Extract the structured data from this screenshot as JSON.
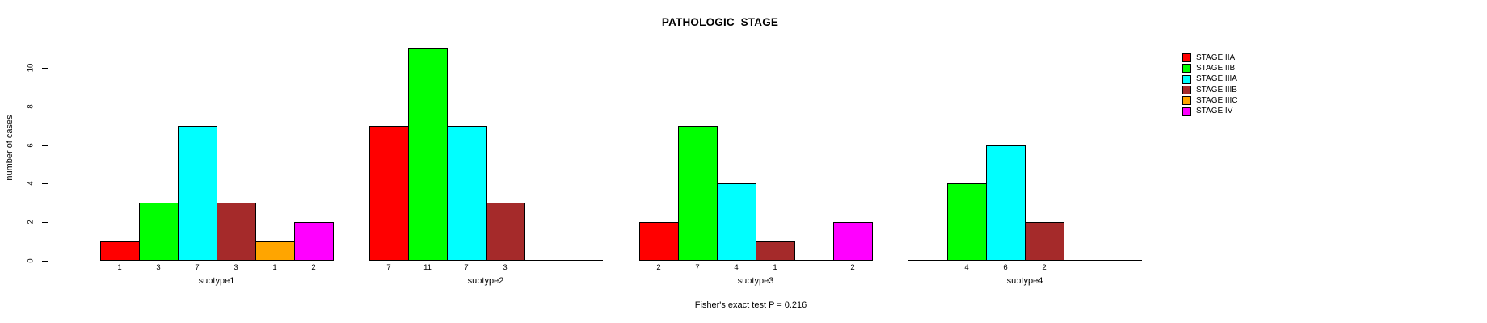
{
  "chart_data": {
    "type": "bar",
    "title": "PATHOLOGIC_STAGE",
    "ylabel": "number of cases",
    "yticks": [
      0,
      2,
      4,
      6,
      8,
      10
    ],
    "ylim": [
      0,
      11.2
    ],
    "grid": false,
    "legend_position": "right-outside",
    "categories": [
      "subtype1",
      "subtype2",
      "subtype3",
      "subtype4"
    ],
    "series": [
      {
        "name": "STAGE IIA",
        "color": "#FF0000",
        "values": [
          1,
          7,
          2,
          0
        ]
      },
      {
        "name": "STAGE IIB",
        "color": "#00FF00",
        "values": [
          3,
          11,
          7,
          4
        ]
      },
      {
        "name": "STAGE IIIA",
        "color": "#00FFFF",
        "values": [
          7,
          7,
          4,
          6
        ]
      },
      {
        "name": "STAGE IIIB",
        "color": "#A52A2A",
        "values": [
          3,
          3,
          1,
          2
        ]
      },
      {
        "name": "STAGE IIIC",
        "color": "#FFA500",
        "values": [
          1,
          0,
          0,
          0
        ]
      },
      {
        "name": "STAGE IV",
        "color": "#FF00FF",
        "values": [
          2,
          0,
          2,
          0
        ]
      }
    ],
    "bar_value_labels_note": "each nonzero bar's value is printed beneath it; zero bars draw as flat baseline segments with no label",
    "annotation": "Fisher's exact test P = 0.216"
  }
}
